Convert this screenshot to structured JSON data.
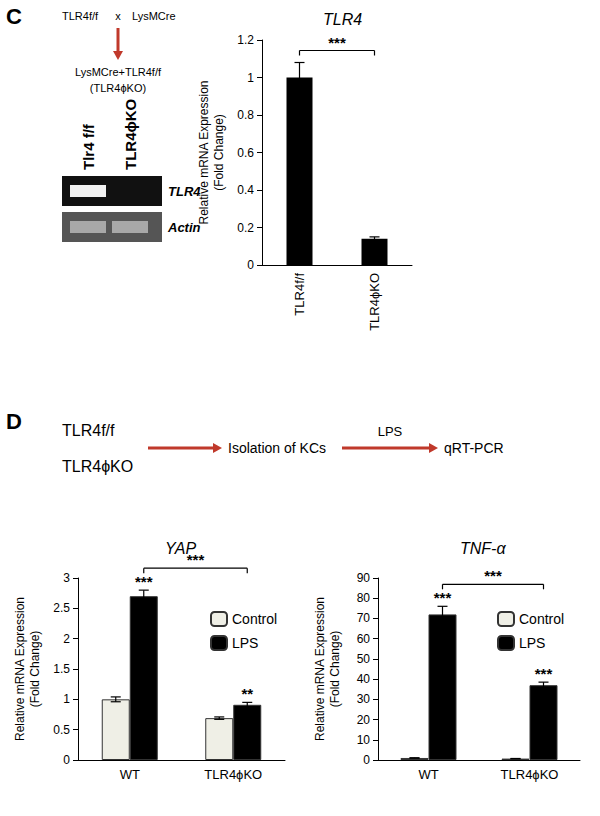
{
  "chart_data": [
    {
      "type": "bar",
      "title": "TLR4",
      "ylabel": "Relative mRNA Expression\n(Fold Change)",
      "categories": [
        "TLR4f/f",
        "TLR4ϕKO"
      ],
      "values": [
        1,
        0.14
      ],
      "errors": [
        0.08,
        0.01
      ],
      "color": "#000000",
      "ylim": [
        0,
        1.2
      ],
      "yticks": [
        0,
        0.2,
        0.4,
        0.6,
        0.8,
        1,
        1.2
      ],
      "grid": false,
      "comparisons": [
        {
          "text": "***",
          "from": {
            "category": "TLR4f/f"
          },
          "to": {
            "category": "TLR4ϕKO"
          }
        }
      ]
    },
    {
      "type": "bar",
      "title": "YAP",
      "ylabel": "Relative mRNA Expression\n(Fold Change)",
      "categories": [
        "WT",
        "TLR4ϕKO"
      ],
      "series": [
        {
          "name": "Control",
          "color": "#efefe6",
          "values": [
            1,
            0.69
          ],
          "errors": [
            0.04,
            0.02
          ]
        },
        {
          "name": "LPS",
          "color": "#000000",
          "values": [
            2.7,
            0.91
          ],
          "errors": [
            0.1,
            0.04
          ]
        }
      ],
      "ylim": [
        0,
        3
      ],
      "yticks": [
        0,
        0.5,
        1,
        1.5,
        2,
        2.5,
        3
      ],
      "grid": false,
      "legend": "upper right",
      "annotations": [
        {
          "text": "***",
          "category": "WT",
          "series": "LPS"
        },
        {
          "text": "**",
          "category": "TLR4ϕKO",
          "series": "LPS"
        }
      ],
      "comparisons": [
        {
          "text": "***",
          "from": {
            "category": "WT",
            "series": "LPS"
          },
          "to": {
            "category": "TLR4ϕKO",
            "series": "LPS"
          }
        }
      ]
    },
    {
      "type": "bar",
      "title": "TNF-α",
      "ylabel": "Relative mRNA Expression\n(Fold Change)",
      "categories": [
        "WT",
        "TLR4ϕKO"
      ],
      "series": [
        {
          "name": "Control",
          "color": "#efefe6",
          "values": [
            1,
            0.7
          ],
          "errors": [
            0.1,
            0.05
          ]
        },
        {
          "name": "LPS",
          "color": "#000000",
          "values": [
            72,
            37
          ],
          "errors": [
            4,
            1.5
          ]
        }
      ],
      "ylim": [
        0,
        90
      ],
      "yticks": [
        0,
        10,
        20,
        30,
        40,
        50,
        60,
        70,
        80,
        90
      ],
      "grid": false,
      "legend": "upper right",
      "annotations": [
        {
          "text": "***",
          "category": "WT",
          "series": "LPS"
        },
        {
          "text": "***",
          "category": "TLR4ϕKO",
          "series": "LPS"
        }
      ],
      "comparisons": [
        {
          "text": "***",
          "from": {
            "category": "WT",
            "series": "LPS"
          },
          "to": {
            "category": "TLR4ϕKO",
            "series": "LPS"
          }
        }
      ]
    }
  ],
  "figure": {
    "panel_labels": [
      "C",
      "D"
    ],
    "panel_c": {
      "cross": {
        "left": "TLR4f/f",
        "symbol": "x",
        "right": "LysMCre"
      },
      "offspring": [
        "LysMCre+TLR4f/f",
        "(TLR4ϕKO)"
      ],
      "gel": {
        "lanes": [
          "Tlr4 f/f",
          "TLR4ϕKO"
        ],
        "bands": [
          {
            "name": "TLR4",
            "lanes": [
              true,
              false
            ]
          },
          {
            "name": "Actin",
            "lanes": [
              true,
              true
            ]
          }
        ]
      }
    },
    "panel_d": {
      "groups": [
        "TLR4f/f",
        "TLR4ϕKO"
      ],
      "steps": [
        "Isolation of KCs",
        "qRT-PCR"
      ],
      "arrow_label": "LPS"
    }
  }
}
